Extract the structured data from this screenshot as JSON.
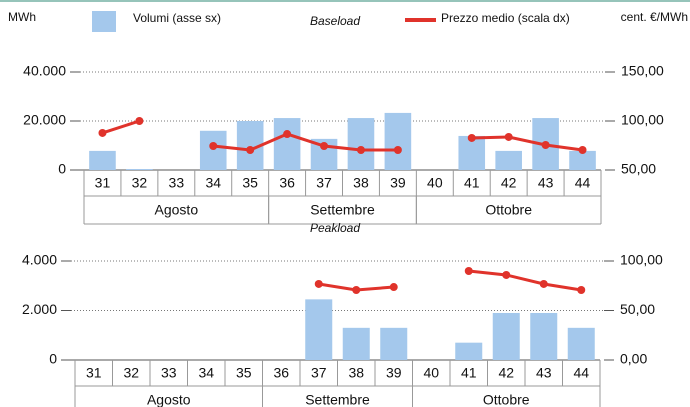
{
  "chart_data": [
    {
      "type": "bar",
      "title": "Baseload",
      "y_unit": "MWh",
      "y2_unit": "cent. €/MWh",
      "categories": [
        "31",
        "32",
        "33",
        "34",
        "35",
        "36",
        "37",
        "38",
        "39",
        "40",
        "41",
        "42",
        "43",
        "44"
      ],
      "groups": [
        {
          "label": "Agosto",
          "from": "31",
          "to": "35"
        },
        {
          "label": "Settembre",
          "from": "36",
          "to": "39"
        },
        {
          "label": "Ottobre",
          "from": "40",
          "to": "44"
        }
      ],
      "series": [
        {
          "name": "Volumi (asse sx)",
          "type": "bar",
          "color": "#a4c8ec",
          "values": [
            7800,
            400,
            0,
            16000,
            20000,
            21200,
            12700,
            21200,
            23300,
            0,
            13900,
            7800,
            21200,
            7800
          ]
        },
        {
          "name": "Prezzo medio (scala dx)",
          "type": "line",
          "axis": "y2",
          "color": "#e0332b",
          "values": [
            87.8,
            100,
            null,
            74.5,
            70.4,
            86.7,
            74.5,
            70.4,
            70.4,
            null,
            82.7,
            83.7,
            75.5,
            70.4
          ]
        }
      ],
      "ylim": [
        0,
        40000
      ],
      "yticks": [
        0,
        {
          "value": 20000,
          "label": "20.000"
        },
        {
          "value": 40000,
          "label": "40.000"
        }
      ],
      "y2lim": [
        50,
        150
      ],
      "y2ticks": [
        {
          "value": 50,
          "label": "50,00"
        },
        {
          "value": 100,
          "label": "100,00"
        },
        {
          "value": 150,
          "label": "150,00"
        }
      ],
      "grid": true
    },
    {
      "type": "bar",
      "title": "Peakload",
      "categories": [
        "31",
        "32",
        "33",
        "34",
        "35",
        "36",
        "37",
        "38",
        "39",
        "40",
        "41",
        "42",
        "43",
        "44"
      ],
      "groups": [
        {
          "label": "Agosto",
          "from": "31",
          "to": "35"
        },
        {
          "label": "Settembre",
          "from": "36",
          "to": "39"
        },
        {
          "label": "Ottobre",
          "from": "40",
          "to": "44"
        }
      ],
      "series": [
        {
          "type": "bar",
          "color": "#a4c8ec",
          "values": [
            0,
            0,
            0,
            0,
            0,
            0,
            2450,
            1300,
            1300,
            0,
            700,
            1900,
            1900,
            1300
          ]
        },
        {
          "type": "line",
          "axis": "y2",
          "color": "#e0332b",
          "values": [
            null,
            null,
            null,
            null,
            null,
            null,
            76.8,
            70.7,
            73.7,
            null,
            89.9,
            85.9,
            76.8,
            70.7
          ]
        }
      ],
      "ylim": [
        0,
        4000
      ],
      "yticks": [
        0,
        {
          "value": 2000,
          "label": "2.000"
        },
        {
          "value": 4000,
          "label": "4.000"
        }
      ],
      "y2lim": [
        0,
        100
      ],
      "y2ticks": [
        {
          "value": 0,
          "label": "0,00"
        },
        {
          "value": 50,
          "label": "50,00"
        },
        {
          "value": 100,
          "label": "100,00"
        }
      ],
      "grid": true
    }
  ]
}
